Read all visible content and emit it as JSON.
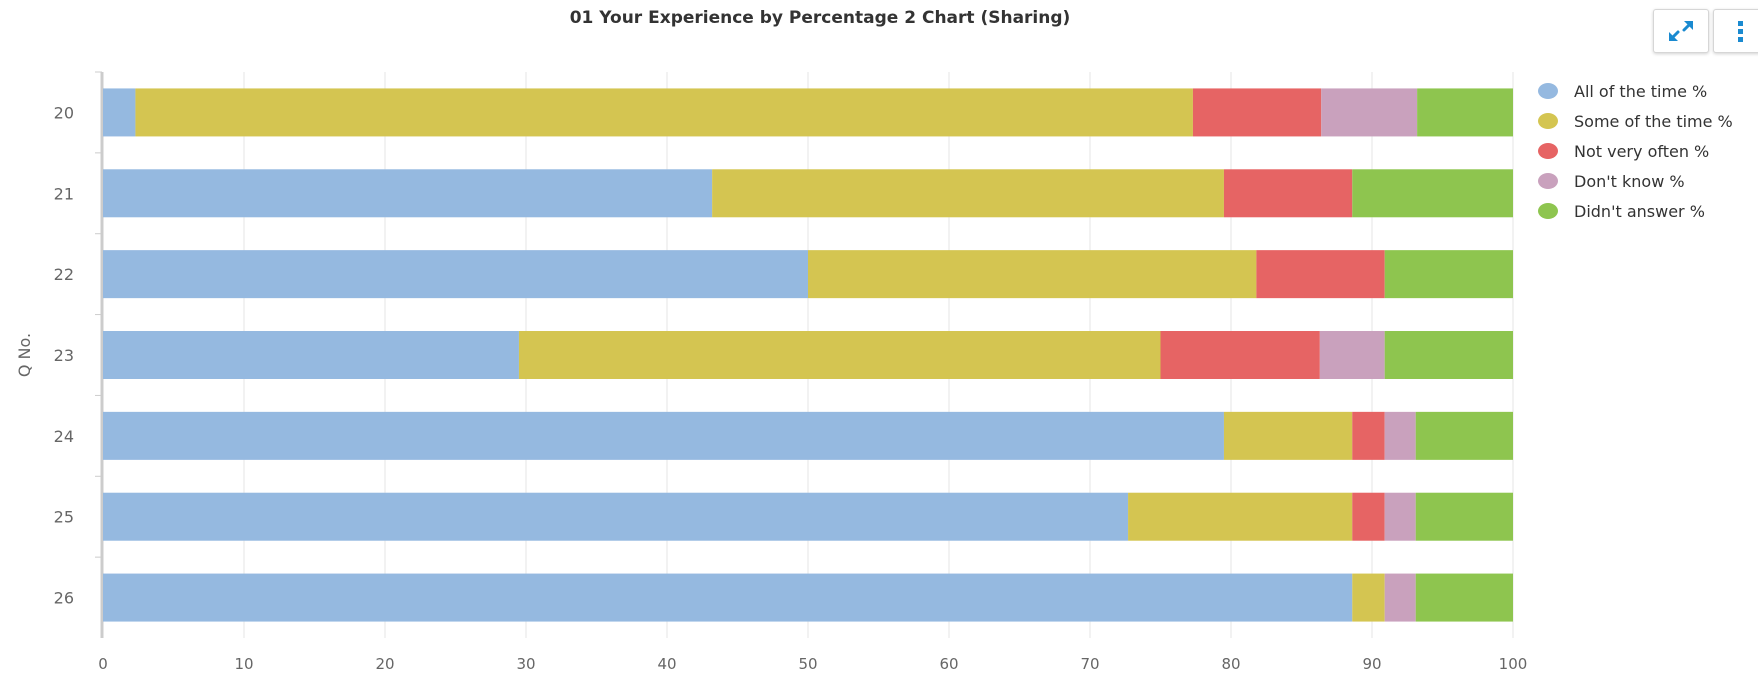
{
  "chart_data": {
    "type": "bar",
    "orientation": "horizontal",
    "stacked": true,
    "title": "01 Your Experience by Percentage 2 Chart (Sharing)",
    "ylabel": "Q No.",
    "xlabel": "",
    "xlim": [
      0,
      100
    ],
    "xticks": [
      "0",
      "10",
      "20",
      "30",
      "40",
      "50",
      "60",
      "70",
      "80",
      "90",
      "100"
    ],
    "grid": true,
    "legend_position": "top-right",
    "categories": [
      "20",
      "21",
      "22",
      "23",
      "24",
      "25",
      "26"
    ],
    "series": [
      {
        "name": "All of the time %",
        "color": "#95b9e0",
        "values": [
          2.3,
          43.2,
          50,
          29.5,
          79.5,
          72.7,
          88.6
        ]
      },
      {
        "name": "Some of the time %",
        "color": "#d4c551",
        "values": [
          75,
          36.3,
          31.8,
          45.5,
          9.1,
          15.9,
          2.3
        ]
      },
      {
        "name": "Not very often %",
        "color": "#e66464",
        "values": [
          9.1,
          9.1,
          9.1,
          11.3,
          2.3,
          2.3,
          0
        ]
      },
      {
        "name": "Don't know %",
        "color": "#c9a1bd",
        "values": [
          6.8,
          0,
          0,
          4.6,
          2.2,
          2.2,
          2.2
        ]
      },
      {
        "name": "Didn't answer %",
        "color": "#8ec54f",
        "values": [
          6.8,
          11.4,
          9.1,
          9.1,
          6.9,
          6.9,
          6.9
        ]
      }
    ]
  },
  "toolbar": {
    "expand_icon": "expand-arrows-icon",
    "menu_icon": "vertical-dots-menu-icon",
    "accent_color": "#1a8ad0"
  }
}
